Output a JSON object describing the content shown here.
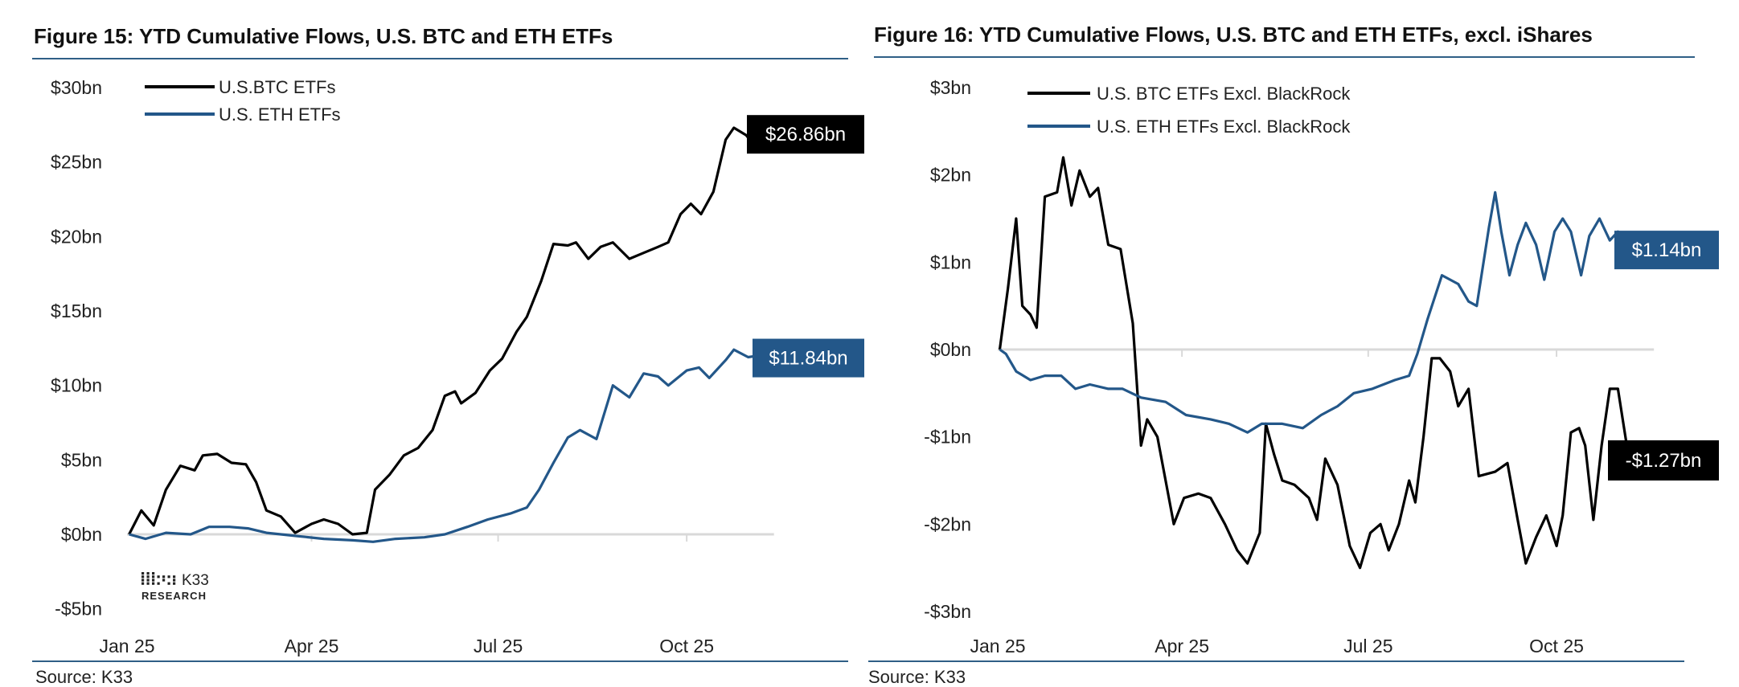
{
  "colors": {
    "btc": "#000000",
    "eth": "#235789",
    "rule": "#2f5f86",
    "zero": "#d9d9d9"
  },
  "chart_data": [
    {
      "type": "line",
      "title": "Figure 15: YTD Cumulative Flows, U.S. BTC and ETH ETFs",
      "source": "Source: K33",
      "logo": {
        "mark": "K33",
        "sub": "RESEARCH"
      },
      "ylim": [
        -5,
        30
      ],
      "yticks": [
        30,
        25,
        20,
        15,
        10,
        5,
        0,
        -5
      ],
      "ytick_labels": [
        "$30bn",
        "$25bn",
        "$20bn",
        "$15bn",
        "$10bn",
        "$5bn",
        "$0bn",
        "-$5bn"
      ],
      "xticks": [
        "2025-01-01",
        "2025-04-01",
        "2025-07-01",
        "2025-10-01"
      ],
      "xtick_labels": [
        "Jan 25",
        "Apr 25",
        "Jul 25",
        "Oct 25"
      ],
      "grid": false,
      "legend": "top-left",
      "end_labels": [
        "$26.86bn",
        "$11.84bn"
      ],
      "series": [
        {
          "name": "U.S.BTC ETFs",
          "color": "#000000",
          "points": [
            [
              "2025-01-02",
              0
            ],
            [
              "2025-01-08",
              1.6
            ],
            [
              "2025-01-14",
              0.6
            ],
            [
              "2025-01-20",
              3.0
            ],
            [
              "2025-01-27",
              4.6
            ],
            [
              "2025-02-03",
              4.3
            ],
            [
              "2025-02-07",
              5.3
            ],
            [
              "2025-02-14",
              5.4
            ],
            [
              "2025-02-21",
              4.8
            ],
            [
              "2025-02-28",
              4.7
            ],
            [
              "2025-03-05",
              3.5
            ],
            [
              "2025-03-10",
              1.6
            ],
            [
              "2025-03-17",
              1.2
            ],
            [
              "2025-03-24",
              0.1
            ],
            [
              "2025-04-01",
              0.7
            ],
            [
              "2025-04-07",
              1.0
            ],
            [
              "2025-04-14",
              0.7
            ],
            [
              "2025-04-21",
              0.0
            ],
            [
              "2025-04-28",
              0.1
            ],
            [
              "2025-05-02",
              3.0
            ],
            [
              "2025-05-09",
              4.0
            ],
            [
              "2025-05-16",
              5.3
            ],
            [
              "2025-05-23",
              5.8
            ],
            [
              "2025-05-30",
              7.0
            ],
            [
              "2025-06-05",
              9.3
            ],
            [
              "2025-06-10",
              9.6
            ],
            [
              "2025-06-13",
              8.8
            ],
            [
              "2025-06-20",
              9.5
            ],
            [
              "2025-06-27",
              11.0
            ],
            [
              "2025-07-03",
              11.8
            ],
            [
              "2025-07-10",
              13.6
            ],
            [
              "2025-07-15",
              14.6
            ],
            [
              "2025-07-22",
              17.0
            ],
            [
              "2025-07-28",
              19.5
            ],
            [
              "2025-08-04",
              19.4
            ],
            [
              "2025-08-08",
              19.6
            ],
            [
              "2025-08-14",
              18.5
            ],
            [
              "2025-08-20",
              19.3
            ],
            [
              "2025-08-26",
              19.6
            ],
            [
              "2025-09-03",
              18.5
            ],
            [
              "2025-09-10",
              18.9
            ],
            [
              "2025-09-17",
              19.3
            ],
            [
              "2025-09-22",
              19.6
            ],
            [
              "2025-09-28",
              21.5
            ],
            [
              "2025-10-03",
              22.2
            ],
            [
              "2025-10-08",
              21.5
            ],
            [
              "2025-10-14",
              23.0
            ],
            [
              "2025-10-20",
              26.5
            ],
            [
              "2025-10-24",
              27.3
            ],
            [
              "2025-10-30",
              26.8
            ],
            [
              "2025-11-03",
              26.1
            ],
            [
              "2025-11-08",
              26.4
            ],
            [
              "2025-11-11",
              26.86
            ]
          ]
        },
        {
          "name": "U.S. ETH ETFs",
          "color": "#235789",
          "points": [
            [
              "2025-01-02",
              0
            ],
            [
              "2025-01-10",
              -0.3
            ],
            [
              "2025-01-20",
              0.1
            ],
            [
              "2025-02-01",
              0.0
            ],
            [
              "2025-02-10",
              0.5
            ],
            [
              "2025-02-20",
              0.5
            ],
            [
              "2025-03-01",
              0.4
            ],
            [
              "2025-03-10",
              0.1
            ],
            [
              "2025-03-24",
              -0.1
            ],
            [
              "2025-04-07",
              -0.3
            ],
            [
              "2025-04-21",
              -0.4
            ],
            [
              "2025-05-01",
              -0.5
            ],
            [
              "2025-05-12",
              -0.3
            ],
            [
              "2025-05-26",
              -0.2
            ],
            [
              "2025-06-05",
              0.0
            ],
            [
              "2025-06-16",
              0.5
            ],
            [
              "2025-06-26",
              1.0
            ],
            [
              "2025-07-07",
              1.4
            ],
            [
              "2025-07-15",
              1.8
            ],
            [
              "2025-07-21",
              3.0
            ],
            [
              "2025-07-28",
              4.8
            ],
            [
              "2025-08-04",
              6.5
            ],
            [
              "2025-08-10",
              7.0
            ],
            [
              "2025-08-18",
              6.4
            ],
            [
              "2025-08-26",
              10.0
            ],
            [
              "2025-09-03",
              9.2
            ],
            [
              "2025-09-10",
              10.8
            ],
            [
              "2025-09-17",
              10.6
            ],
            [
              "2025-09-22",
              10.0
            ],
            [
              "2025-10-01",
              11.0
            ],
            [
              "2025-10-07",
              11.2
            ],
            [
              "2025-10-12",
              10.5
            ],
            [
              "2025-10-20",
              11.7
            ],
            [
              "2025-10-24",
              12.4
            ],
            [
              "2025-10-31",
              11.9
            ],
            [
              "2025-11-05",
              12.0
            ],
            [
              "2025-11-11",
              11.84
            ]
          ]
        }
      ]
    },
    {
      "type": "line",
      "title": "Figure 16: YTD Cumulative Flows, U.S. BTC and ETH ETFs, excl. iShares",
      "source": "Source: K33",
      "ylim": [
        -3,
        3
      ],
      "yticks": [
        3,
        2,
        1,
        0,
        -1,
        -2,
        -3
      ],
      "ytick_labels": [
        "$3bn",
        "$2bn",
        "$1bn",
        "$0bn",
        "-$1bn",
        "-$2bn",
        "-$3bn"
      ],
      "xticks": [
        "2025-01-01",
        "2025-04-01",
        "2025-07-01",
        "2025-10-01"
      ],
      "xtick_labels": [
        "Jan 25",
        "Apr 25",
        "Jul 25",
        "Oct 25"
      ],
      "grid": false,
      "legend": "top-left",
      "end_labels": [
        "-$1.27bn",
        "$1.14bn"
      ],
      "series": [
        {
          "name": "U.S. BTC ETFs Excl. BlackRock",
          "color": "#000000",
          "points": [
            [
              "2025-01-02",
              0
            ],
            [
              "2025-01-06",
              0.7
            ],
            [
              "2025-01-10",
              1.5
            ],
            [
              "2025-01-13",
              0.5
            ],
            [
              "2025-01-17",
              0.4
            ],
            [
              "2025-01-20",
              0.25
            ],
            [
              "2025-01-24",
              1.75
            ],
            [
              "2025-01-30",
              1.8
            ],
            [
              "2025-02-02",
              2.2
            ],
            [
              "2025-02-06",
              1.65
            ],
            [
              "2025-02-10",
              2.05
            ],
            [
              "2025-02-15",
              1.75
            ],
            [
              "2025-02-19",
              1.85
            ],
            [
              "2025-02-24",
              1.2
            ],
            [
              "2025-03-02",
              1.15
            ],
            [
              "2025-03-08",
              0.3
            ],
            [
              "2025-03-12",
              -1.1
            ],
            [
              "2025-03-15",
              -0.8
            ],
            [
              "2025-03-20",
              -1.0
            ],
            [
              "2025-03-28",
              -2.0
            ],
            [
              "2025-04-02",
              -1.7
            ],
            [
              "2025-04-09",
              -1.65
            ],
            [
              "2025-04-15",
              -1.7
            ],
            [
              "2025-04-22",
              -2.0
            ],
            [
              "2025-04-28",
              -2.3
            ],
            [
              "2025-05-03",
              -2.45
            ],
            [
              "2025-05-09",
              -2.1
            ],
            [
              "2025-05-12",
              -0.85
            ],
            [
              "2025-05-16",
              -1.2
            ],
            [
              "2025-05-20",
              -1.5
            ],
            [
              "2025-05-26",
              -1.55
            ],
            [
              "2025-06-02",
              -1.7
            ],
            [
              "2025-06-06",
              -1.95
            ],
            [
              "2025-06-10",
              -1.25
            ],
            [
              "2025-06-16",
              -1.55
            ],
            [
              "2025-06-22",
              -2.25
            ],
            [
              "2025-06-27",
              -2.5
            ],
            [
              "2025-07-02",
              -2.1
            ],
            [
              "2025-07-07",
              -2.0
            ],
            [
              "2025-07-11",
              -2.3
            ],
            [
              "2025-07-16",
              -2.0
            ],
            [
              "2025-07-21",
              -1.5
            ],
            [
              "2025-07-24",
              -1.75
            ],
            [
              "2025-07-28",
              -1.0
            ],
            [
              "2025-08-01",
              -0.1
            ],
            [
              "2025-08-05",
              -0.1
            ],
            [
              "2025-08-10",
              -0.25
            ],
            [
              "2025-08-14",
              -0.65
            ],
            [
              "2025-08-19",
              -0.45
            ],
            [
              "2025-08-24",
              -1.45
            ],
            [
              "2025-09-01",
              -1.4
            ],
            [
              "2025-09-07",
              -1.3
            ],
            [
              "2025-09-12",
              -1.95
            ],
            [
              "2025-09-16",
              -2.45
            ],
            [
              "2025-09-21",
              -2.15
            ],
            [
              "2025-09-26",
              -1.9
            ],
            [
              "2025-10-01",
              -2.25
            ],
            [
              "2025-10-04",
              -1.9
            ],
            [
              "2025-10-08",
              -0.95
            ],
            [
              "2025-10-12",
              -0.9
            ],
            [
              "2025-10-15",
              -1.1
            ],
            [
              "2025-10-19",
              -1.95
            ],
            [
              "2025-10-23",
              -1.1
            ],
            [
              "2025-10-27",
              -0.45
            ],
            [
              "2025-10-31",
              -0.45
            ],
            [
              "2025-11-04",
              -1.05
            ],
            [
              "2025-11-08",
              -1.45
            ],
            [
              "2025-11-11",
              -1.2
            ],
            [
              "2025-11-14",
              -1.35
            ],
            [
              "2025-11-16",
              -1.27
            ]
          ]
        },
        {
          "name": "U.S. ETH ETFs Excl. BlackRock",
          "color": "#235789",
          "points": [
            [
              "2025-01-02",
              0
            ],
            [
              "2025-01-05",
              -0.05
            ],
            [
              "2025-01-10",
              -0.25
            ],
            [
              "2025-01-17",
              -0.35
            ],
            [
              "2025-01-24",
              -0.3
            ],
            [
              "2025-02-01",
              -0.3
            ],
            [
              "2025-02-08",
              -0.45
            ],
            [
              "2025-02-15",
              -0.4
            ],
            [
              "2025-02-24",
              -0.45
            ],
            [
              "2025-03-03",
              -0.45
            ],
            [
              "2025-03-12",
              -0.55
            ],
            [
              "2025-03-24",
              -0.6
            ],
            [
              "2025-04-03",
              -0.75
            ],
            [
              "2025-04-15",
              -0.8
            ],
            [
              "2025-04-24",
              -0.85
            ],
            [
              "2025-05-03",
              -0.95
            ],
            [
              "2025-05-10",
              -0.85
            ],
            [
              "2025-05-20",
              -0.85
            ],
            [
              "2025-05-30",
              -0.9
            ],
            [
              "2025-06-08",
              -0.75
            ],
            [
              "2025-06-16",
              -0.65
            ],
            [
              "2025-06-24",
              -0.5
            ],
            [
              "2025-07-03",
              -0.45
            ],
            [
              "2025-07-14",
              -0.35
            ],
            [
              "2025-07-21",
              -0.3
            ],
            [
              "2025-07-25",
              -0.05
            ],
            [
              "2025-07-30",
              0.35
            ],
            [
              "2025-08-06",
              0.85
            ],
            [
              "2025-08-14",
              0.75
            ],
            [
              "2025-08-19",
              0.55
            ],
            [
              "2025-08-23",
              0.5
            ],
            [
              "2025-08-29",
              1.4
            ],
            [
              "2025-09-01",
              1.8
            ],
            [
              "2025-09-04",
              1.35
            ],
            [
              "2025-09-08",
              0.85
            ],
            [
              "2025-09-12",
              1.2
            ],
            [
              "2025-09-16",
              1.45
            ],
            [
              "2025-09-21",
              1.2
            ],
            [
              "2025-09-25",
              0.8
            ],
            [
              "2025-09-30",
              1.35
            ],
            [
              "2025-10-04",
              1.5
            ],
            [
              "2025-10-08",
              1.35
            ],
            [
              "2025-10-13",
              0.85
            ],
            [
              "2025-10-17",
              1.3
            ],
            [
              "2025-10-22",
              1.5
            ],
            [
              "2025-10-27",
              1.25
            ],
            [
              "2025-10-31",
              1.35
            ],
            [
              "2025-11-04",
              1.25
            ],
            [
              "2025-11-08",
              1.25
            ],
            [
              "2025-11-12",
              1.1
            ],
            [
              "2025-11-16",
              1.14
            ]
          ]
        }
      ]
    }
  ]
}
